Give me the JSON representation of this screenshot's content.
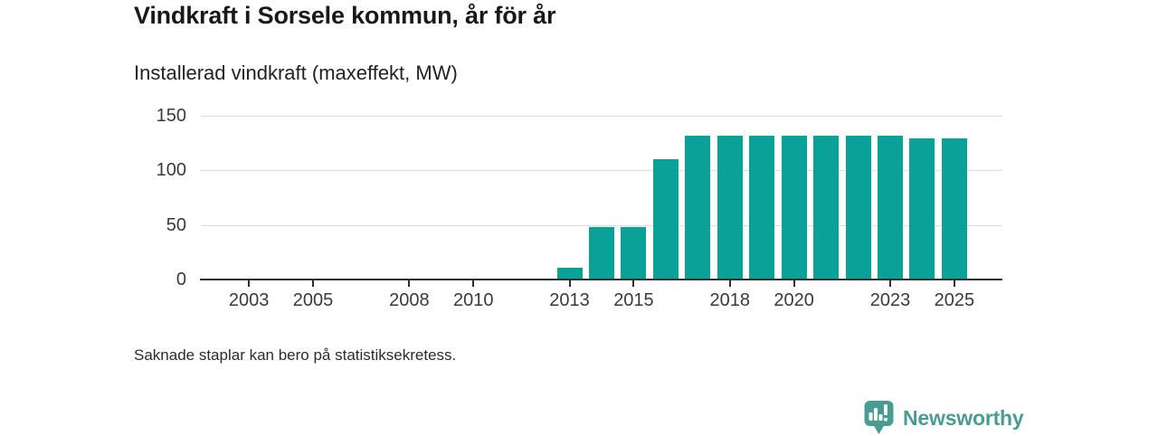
{
  "chart_data": {
    "type": "bar",
    "title": "Vindkraft i Sorsele kommun, år för år",
    "subtitle": "Installerad vindkraft (maxeffekt, MW)",
    "footnote": "Saknade staplar kan bero på statistiksekretess.",
    "xlabel": "",
    "ylabel": "Installerad vindkraft (maxeffekt, MW)",
    "ylim": [
      0,
      150
    ],
    "grid": true,
    "legend": "none",
    "bar_color": "#0aa298",
    "categories": [
      2002,
      2003,
      2004,
      2005,
      2006,
      2007,
      2008,
      2009,
      2010,
      2011,
      2012,
      2013,
      2014,
      2015,
      2016,
      2017,
      2018,
      2019,
      2020,
      2021,
      2022,
      2023,
      2024,
      2025
    ],
    "values": [
      null,
      null,
      null,
      null,
      null,
      null,
      null,
      null,
      null,
      null,
      null,
      11,
      48,
      48,
      110,
      131,
      131,
      131,
      131,
      131,
      131,
      131,
      129,
      129
    ],
    "yticks": [
      0,
      50,
      100,
      150
    ],
    "xticks": [
      2003,
      2005,
      2008,
      2010,
      2013,
      2015,
      2018,
      2020,
      2023,
      2025
    ]
  },
  "branding": {
    "logo_text": "Newsworthy",
    "logo_icon": "bar-chart-speech-bubble-icon",
    "logo_color": "#4a9c93"
  }
}
